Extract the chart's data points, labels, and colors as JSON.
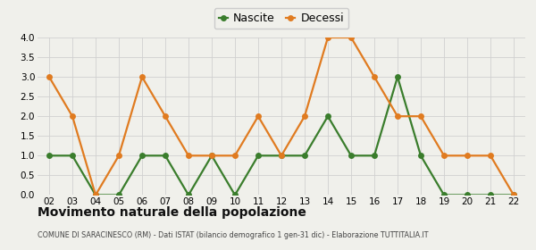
{
  "x_labels": [
    "02",
    "03",
    "04",
    "05",
    "06",
    "07",
    "08",
    "09",
    "10",
    "11",
    "12",
    "13",
    "14",
    "15",
    "16",
    "17",
    "18",
    "19",
    "20",
    "21",
    "22"
  ],
  "nascite": [
    1,
    1,
    0,
    0,
    1,
    1,
    0,
    1,
    0,
    1,
    1,
    1,
    2,
    1,
    1,
    3,
    1,
    0,
    0,
    0,
    0
  ],
  "decessi": [
    3,
    2,
    0,
    1,
    3,
    2,
    1,
    1,
    1,
    2,
    1,
    2,
    4,
    4,
    3,
    2,
    2,
    1,
    1,
    1,
    0
  ],
  "nascite_color": "#3a7d2c",
  "decessi_color": "#e07b20",
  "ylim": [
    0,
    4.0
  ],
  "yticks": [
    0,
    0.5,
    1.0,
    1.5,
    2.0,
    2.5,
    3.0,
    3.5,
    4.0
  ],
  "title": "Movimento naturale della popolazione",
  "subtitle": "COMUNE DI SARACINESCO (RM) - Dati ISTAT (bilancio demografico 1 gen-31 dic) - Elaborazione TUTTITALIA.IT",
  "legend_nascite": "Nascite",
  "legend_decessi": "Decessi",
  "bg_color": "#f0f0eb",
  "grid_color": "#d0d0d0",
  "marker_size": 5,
  "linewidth": 1.6
}
